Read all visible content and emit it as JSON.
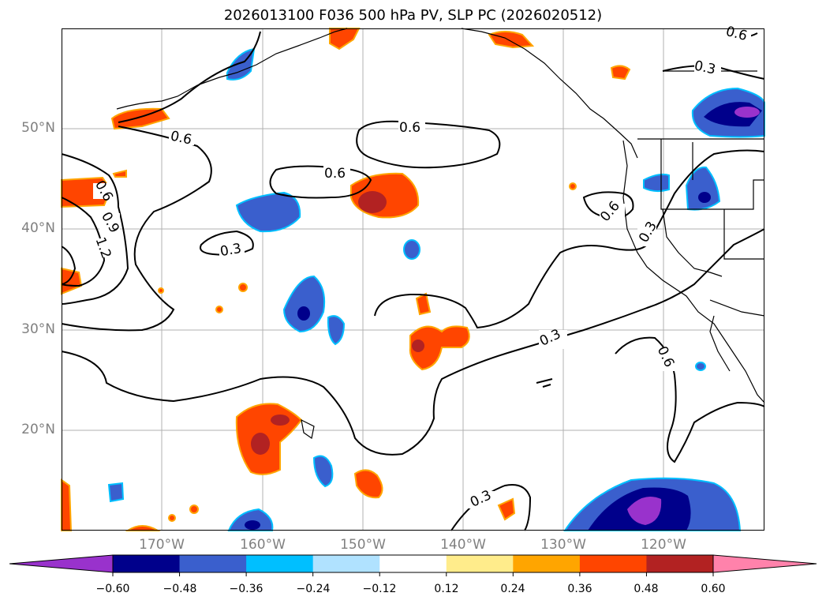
{
  "title": "2026013100 F036 500 hPa PV, SLP PC (2026020512)",
  "map": {
    "projection": "PlateCarree",
    "lon_labels": [
      "170°W",
      "160°W",
      "150°W",
      "140°W",
      "130°W",
      "120°W"
    ],
    "lat_labels": [
      "50°N",
      "40°N",
      "30°N",
      "20°N"
    ],
    "contour_labels": [
      "0.6",
      "0.6",
      "0.6",
      "0.6",
      "0.9",
      "1.2",
      "0.3",
      "0.3",
      "0.3",
      "0.6",
      "0.3",
      "0.3",
      "0.6",
      "0.6"
    ],
    "contour_color": "#000000",
    "gridlines": true
  },
  "colorbar": {
    "ticks": [
      "−0.60",
      "−0.48",
      "−0.36",
      "−0.24",
      "−0.12",
      "0.12",
      "0.24",
      "0.36",
      "0.48",
      "0.60"
    ],
    "colors": [
      "#9932cc",
      "#00008b",
      "#3a5fcd",
      "#00bfff",
      "#b0e2ff",
      "#ffffff",
      "#ffec8b",
      "#ffa500",
      "#ff4500",
      "#b22222",
      "#ff82ab"
    ],
    "extend": "both"
  }
}
